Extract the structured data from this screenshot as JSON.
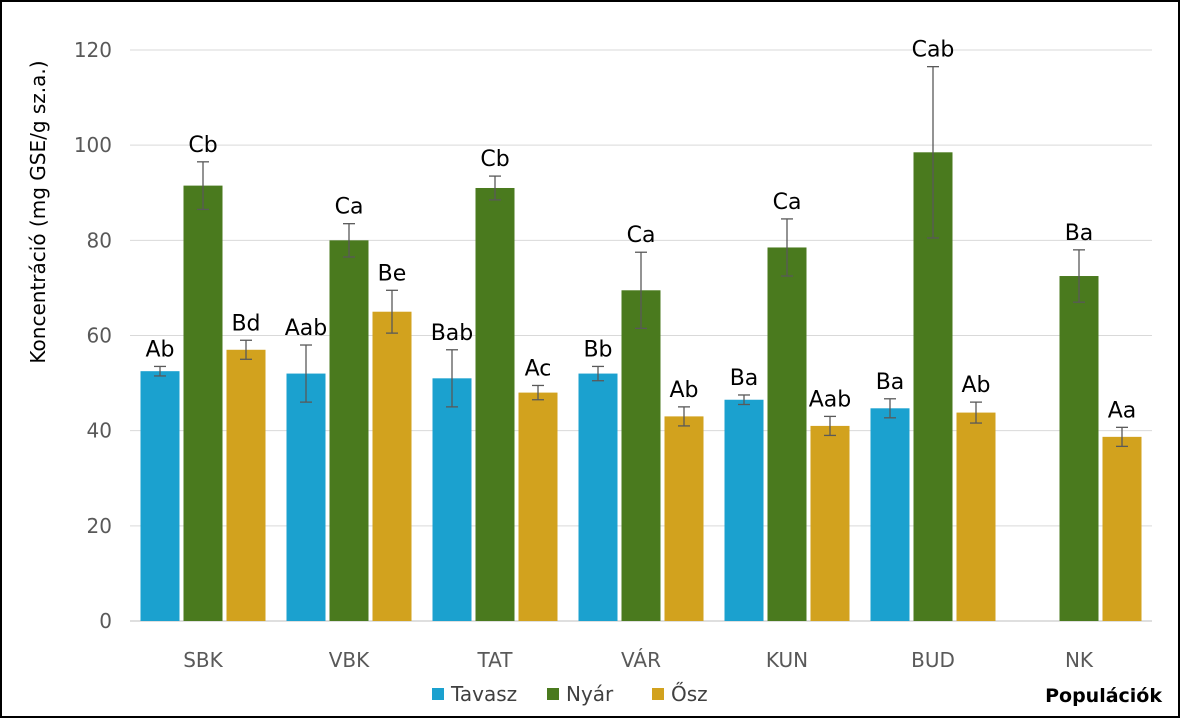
{
  "chart_data": {
    "type": "bar",
    "title": "",
    "xlabel": "Populációk",
    "ylabel": "Koncentráció (mg GSE/g sz.a.)",
    "ylim": [
      0,
      120
    ],
    "yticks": [
      0,
      20,
      40,
      60,
      80,
      100,
      120
    ],
    "grid": true,
    "legend_position": "bottom",
    "categories": [
      "SBK",
      "VBK",
      "TAT",
      "VÁR",
      "KUN",
      "BUD",
      "NK"
    ],
    "series": [
      {
        "name": "Tavasz",
        "color": "#1BA1CF",
        "values": [
          52.5,
          52,
          51,
          52,
          46.5,
          44.7,
          null
        ],
        "errors": [
          1,
          6,
          6,
          1.5,
          1,
          2,
          null
        ],
        "labels": [
          "Ab",
          "Aab",
          "Bab",
          "Bb",
          "Ba",
          "Ba",
          ""
        ]
      },
      {
        "name": "Nyár",
        "color": "#4A7A1E",
        "values": [
          91.5,
          80,
          91,
          69.5,
          78.5,
          98.5,
          72.5
        ],
        "errors": [
          5,
          3.5,
          2.5,
          8,
          6,
          18,
          5.5
        ],
        "labels": [
          "Cb",
          "Ca",
          "Cb",
          "Ca",
          "Ca",
          "Cab",
          "Ba"
        ]
      },
      {
        "name": "Ősz",
        "color": "#D2A21E",
        "values": [
          57,
          65,
          48,
          43,
          41,
          43.8,
          38.7
        ],
        "errors": [
          2,
          4.5,
          1.5,
          2,
          2,
          2.2,
          2
        ],
        "labels": [
          "Bd",
          "Be",
          "Ac",
          "Ab",
          "Aab",
          "Ab",
          "Aa"
        ]
      }
    ]
  }
}
